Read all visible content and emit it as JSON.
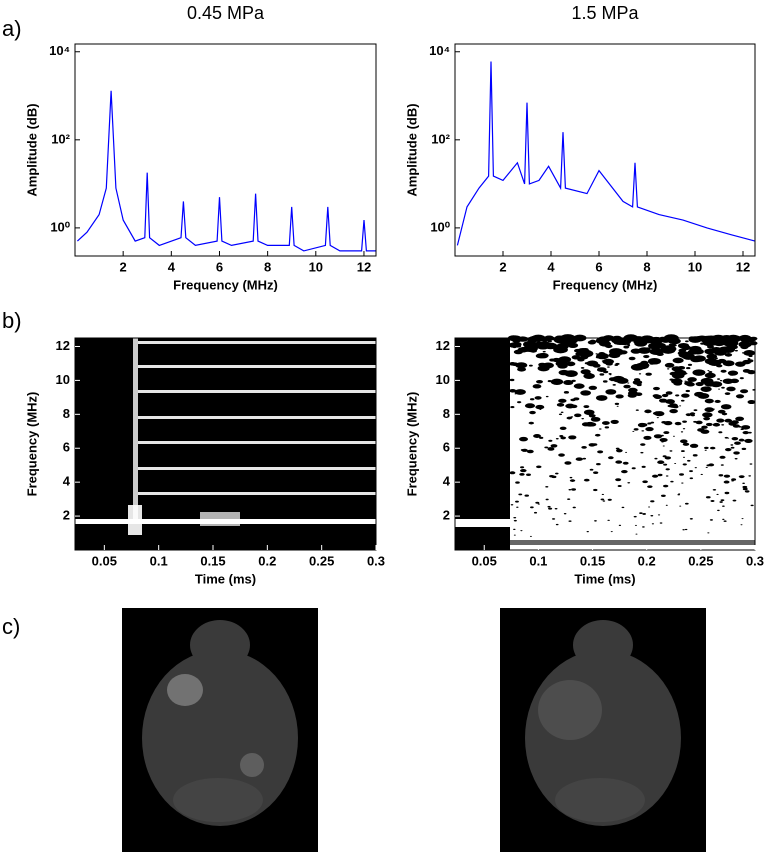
{
  "panel_labels": [
    "a)",
    "b)",
    "c)"
  ],
  "chart_data": [
    {
      "type": "line",
      "title": "0.45 MPa",
      "x_label": "Frequency (MHz)",
      "y_label": "Amplitude (dB)",
      "y_scale": "log",
      "color": "#0000ff",
      "xlim": [
        0,
        12.5
      ],
      "ylim": [
        0.23,
        15000
      ],
      "xticks": [
        2,
        4,
        6,
        8,
        10,
        12
      ],
      "yticks": [
        {
          "value": 1,
          "label": "10⁰"
        },
        {
          "value": 100,
          "label": "10²"
        },
        {
          "value": 10000,
          "label": "10⁴"
        }
      ],
      "x": [
        0.1,
        0.5,
        1.0,
        1.3,
        1.5,
        1.7,
        2.0,
        2.5,
        2.9,
        3.0,
        3.1,
        3.5,
        4.4,
        4.5,
        4.6,
        5.0,
        5.9,
        6.0,
        6.1,
        6.5,
        7.4,
        7.5,
        7.6,
        8.0,
        8.9,
        9.0,
        9.1,
        9.5,
        10.4,
        10.5,
        10.6,
        11.0,
        11.9,
        12.0,
        12.1,
        12.5
      ],
      "values": [
        0.5,
        0.8,
        2,
        8,
        1300,
        8,
        1.5,
        0.5,
        0.6,
        18,
        0.6,
        0.4,
        0.6,
        4,
        0.6,
        0.4,
        0.5,
        5,
        0.5,
        0.4,
        0.5,
        6,
        0.5,
        0.4,
        0.4,
        3,
        0.4,
        0.3,
        0.4,
        3,
        0.4,
        0.3,
        0.3,
        1.5,
        0.3,
        0.3
      ]
    },
    {
      "type": "line",
      "title": "1.5 MPa",
      "x_label": "Frequency (MHz)",
      "y_label": "Amplitude (dB)",
      "y_scale": "log",
      "color": "#0000ff",
      "xlim": [
        0,
        12.5
      ],
      "ylim": [
        0.23,
        15000
      ],
      "xticks": [
        2,
        4,
        6,
        8,
        10,
        12
      ],
      "yticks": [
        {
          "value": 1,
          "label": "10⁰"
        },
        {
          "value": 100,
          "label": "10²"
        },
        {
          "value": 10000,
          "label": "10⁴"
        }
      ],
      "x": [
        0.1,
        0.5,
        1.0,
        1.4,
        1.5,
        1.6,
        2.0,
        2.6,
        2.9,
        3.0,
        3.1,
        3.5,
        3.9,
        4.4,
        4.5,
        4.6,
        5.5,
        6.0,
        7.0,
        7.4,
        7.5,
        7.6,
        8.5,
        9.5,
        10.5,
        11.5,
        12.5
      ],
      "values": [
        0.4,
        3,
        8,
        15,
        6000,
        15,
        12,
        30,
        10,
        700,
        10,
        12,
        25,
        8,
        150,
        8,
        6,
        20,
        4,
        3,
        30,
        3,
        2,
        1.5,
        1,
        0.7,
        0.5
      ]
    },
    {
      "type": "spectrogram",
      "x_label": "Time (ms)",
      "y_label": "Frequency (MHz)",
      "xlim": [
        0.023,
        0.3
      ],
      "ylim": [
        0,
        12.5
      ],
      "xticks": [
        0.05,
        0.1,
        0.15,
        0.2,
        0.25,
        0.3
      ],
      "yticks": [
        2,
        4,
        6,
        8,
        10,
        12
      ]
    },
    {
      "type": "spectrogram",
      "x_label": "Time (ms)",
      "y_label": "Frequency (MHz)",
      "xlim": [
        0.023,
        0.3
      ],
      "ylim": [
        0,
        12.5
      ],
      "xticks": [
        0.05,
        0.1,
        0.15,
        0.2,
        0.25,
        0.3
      ],
      "yticks": [
        2,
        4,
        6,
        8,
        10,
        12
      ]
    }
  ]
}
